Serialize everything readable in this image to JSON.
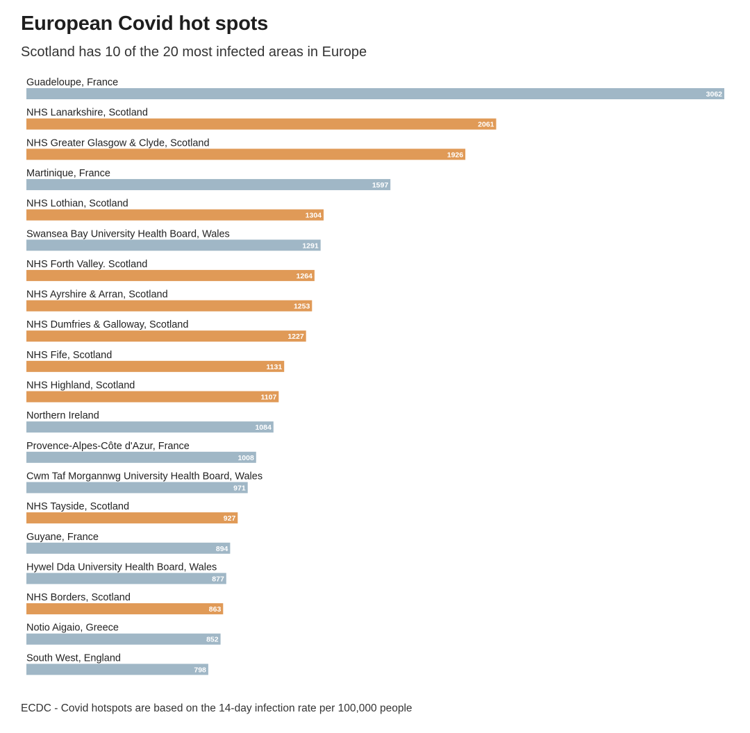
{
  "header": {
    "title": "European Covid hot spots",
    "subtitle": "Scotland has 10 of the 20 most infected areas in Europe"
  },
  "footer": {
    "source": "ECDC - Covid hotspots are based on the 14-day infection rate per 100,000 people"
  },
  "colors": {
    "scotland": "#e09a57",
    "other": "#a0b7c6"
  },
  "chart_data": {
    "type": "bar",
    "orientation": "horizontal",
    "title": "European Covid hot spots",
    "subtitle": "Scotland has 10 of the 20 most infected areas in Europe",
    "xlabel": "",
    "ylabel": "",
    "xlim": [
      0,
      3062
    ],
    "grid": false,
    "categories": [
      "Guadeloupe, France",
      "NHS Lanarkshire, Scotland",
      "NHS Greater Glasgow & Clyde, Scotland",
      "Martinique, France",
      "NHS Lothian, Scotland",
      "Swansea Bay University Health Board, Wales",
      "NHS Forth Valley. Scotland",
      "NHS Ayrshire & Arran, Scotland",
      "NHS Dumfries & Galloway, Scotland",
      "NHS Fife, Scotland",
      "NHS Highland, Scotland",
      "Northern Ireland",
      "Provence-Alpes-Côte d'Azur, France",
      "Cwm Taf Morgannwg University Health Board, Wales",
      "NHS Tayside, Scotland",
      "Guyane, France",
      "Hywel Dda University Health Board, Wales",
      "NHS Borders, Scotland",
      "Notio Aigaio, Greece",
      "South West, England"
    ],
    "values": [
      3062,
      2061,
      1926,
      1597,
      1304,
      1291,
      1264,
      1253,
      1227,
      1131,
      1107,
      1084,
      1008,
      971,
      927,
      894,
      877,
      863,
      852,
      798
    ],
    "groups": [
      "other",
      "scotland",
      "scotland",
      "other",
      "scotland",
      "other",
      "scotland",
      "scotland",
      "scotland",
      "scotland",
      "scotland",
      "other",
      "other",
      "other",
      "scotland",
      "other",
      "other",
      "scotland",
      "other",
      "other"
    ]
  }
}
